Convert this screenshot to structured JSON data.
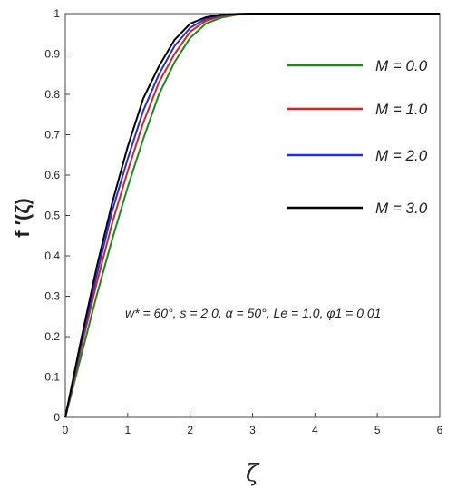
{
  "chart_data": {
    "type": "line",
    "xlabel": "ζ",
    "ylabel": "f ′(ζ)",
    "xlim": [
      0,
      6
    ],
    "ylim": [
      0,
      1
    ],
    "x_ticks": [
      "0",
      "1",
      "2",
      "3",
      "4",
      "5",
      "6"
    ],
    "y_ticks": [
      "0",
      "0.1",
      "0.2",
      "0.3",
      "0.4",
      "0.5",
      "0.6",
      "0.7",
      "0.8",
      "0.9",
      "1"
    ],
    "grid": false,
    "legend_position": "top-right",
    "annotation": "w* = 60°, s = 2.0, α = 50°, Le = 1.0, φ1 = 0.01",
    "series": [
      {
        "name": "M = 0.0",
        "color": "#1a8a1a",
        "x": [
          0,
          0.25,
          0.5,
          0.75,
          1.0,
          1.25,
          1.5,
          1.75,
          2.0,
          2.25,
          2.5,
          2.75,
          3.0,
          3.5,
          4.0,
          5.0,
          6.0
        ],
        "y": [
          0,
          0.15,
          0.3,
          0.44,
          0.57,
          0.69,
          0.8,
          0.88,
          0.94,
          0.975,
          0.99,
          0.997,
          1.0,
          1.0,
          1.0,
          1.0,
          1.0
        ]
      },
      {
        "name": "M = 1.0",
        "color": "#e02020",
        "x": [
          0,
          0.25,
          0.5,
          0.75,
          1.0,
          1.25,
          1.5,
          1.75,
          2.0,
          2.25,
          2.5,
          2.75,
          3.0,
          3.5,
          4.0,
          5.0,
          6.0
        ],
        "y": [
          0,
          0.17,
          0.33,
          0.48,
          0.61,
          0.73,
          0.83,
          0.9,
          0.955,
          0.982,
          0.994,
          0.998,
          1.0,
          1.0,
          1.0,
          1.0,
          1.0
        ]
      },
      {
        "name": "M = 2.0",
        "color": "#1f2fe0",
        "x": [
          0,
          0.25,
          0.5,
          0.75,
          1.0,
          1.25,
          1.5,
          1.75,
          2.0,
          2.25,
          2.5,
          2.75,
          3.0,
          3.5,
          4.0,
          5.0,
          6.0
        ],
        "y": [
          0,
          0.18,
          0.35,
          0.51,
          0.64,
          0.76,
          0.85,
          0.92,
          0.965,
          0.987,
          0.996,
          0.999,
          1.0,
          1.0,
          1.0,
          1.0,
          1.0
        ]
      },
      {
        "name": "M = 3.0",
        "color": "#000000",
        "x": [
          0,
          0.25,
          0.5,
          0.75,
          1.0,
          1.25,
          1.5,
          1.75,
          2.0,
          2.25,
          2.5,
          2.75,
          3.0,
          3.5,
          4.0,
          5.0,
          6.0
        ],
        "y": [
          0,
          0.19,
          0.37,
          0.53,
          0.67,
          0.79,
          0.87,
          0.935,
          0.975,
          0.991,
          0.997,
          0.999,
          1.0,
          1.0,
          1.0,
          1.0,
          1.0
        ]
      }
    ]
  }
}
